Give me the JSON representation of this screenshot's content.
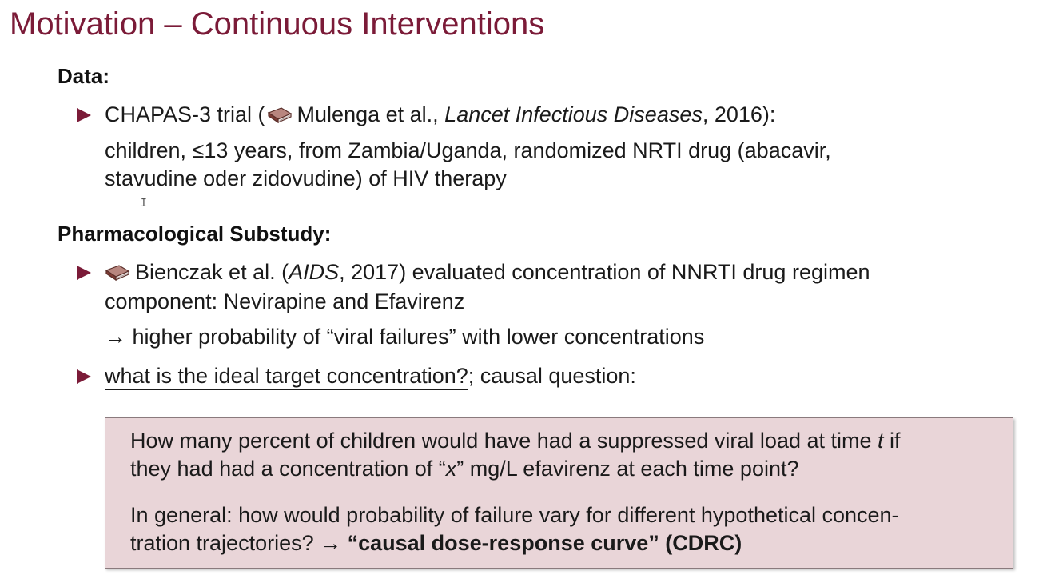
{
  "slide": {
    "title": "Motivation – Continuous Interventions"
  },
  "data_section": {
    "heading": "Data:",
    "bullet1": {
      "line1_a": "CHAPAS-3 trial (",
      "line1_b": "Mulenga et al., ",
      "line1_journal": "Lancet Infectious Diseases",
      "line1_c": ", 2016):",
      "line2": "children, ≤13 years, from Zambia/Uganda, randomized NRTI drug (abacavir,",
      "line3": "stavudine oder zidovudine) of HIV therapy"
    }
  },
  "pharma_section": {
    "heading": "Pharmacological Substudy:",
    "bullet1": {
      "line1_a": "Bienczak et al. (",
      "line1_journal": "AIDS",
      "line1_b": ", 2017) evaluated concentration of NNRTI drug regimen",
      "line2": "component: Nevirapine and Efavirenz",
      "line3": "→ higher probability of “viral failures” with lower concentrations"
    },
    "bullet2": {
      "underlined": "what is the ideal target concentration?",
      "rest": "; causal question:"
    }
  },
  "callout": {
    "p1_line1_a": "How many percent of children would have had a suppressed viral load at time ",
    "p1_line1_t": "t",
    "p1_line1_b": " if",
    "p1_line2_a": "they had had a concentration of “",
    "p1_line2_x": "x",
    "p1_line2_b": "” mg/L efavirenz at each time point?",
    "p2_line1": "In general: how would probability of failure vary for different hypothetical concen-",
    "p2_line2_a": "tration trajectories? → ",
    "p2_line2_bold": "“causal dose-response curve” (CDRC)"
  },
  "icons": {
    "reference": "book-icon",
    "bullet": "triangle-bullet-icon",
    "cursor": "text-cursor-icon"
  },
  "colors": {
    "title": "#7b1b38",
    "bullet": "#7b1b38",
    "callout_background": "#e9d5d8",
    "callout_border": "#8a7a7d"
  }
}
